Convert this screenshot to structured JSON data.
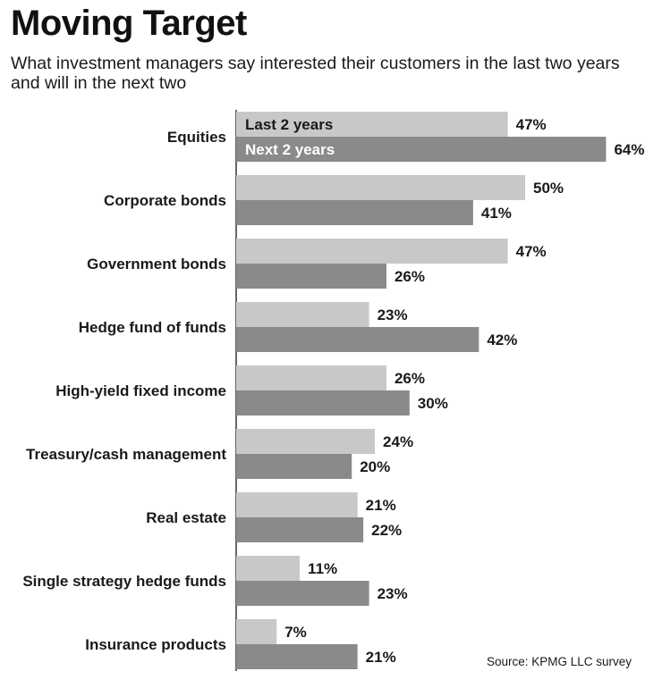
{
  "title": "Moving Target",
  "subtitle": "What investment managers say interested their customers in the last two years and will in the next two",
  "source": "Source: KPMG LLC survey",
  "colors": {
    "last": "#c8c8c8",
    "next": "#8a8a8a",
    "legend_last_text": "#1a1a1a",
    "legend_next_text": "#ffffff"
  },
  "chart_data": {
    "type": "bar",
    "orientation": "horizontal",
    "unit": "%",
    "categories": [
      "Equities",
      "Corporate bonds",
      "Government bonds",
      "Hedge fund of funds",
      "High-yield fixed income",
      "Treasury/cash management",
      "Real estate",
      "Single strategy hedge funds",
      "Insurance products"
    ],
    "series": [
      {
        "name": "Last 2 years",
        "values": [
          47,
          50,
          47,
          23,
          26,
          24,
          21,
          11,
          7
        ]
      },
      {
        "name": "Next 2 years",
        "values": [
          64,
          41,
          26,
          42,
          30,
          20,
          22,
          23,
          21
        ]
      }
    ],
    "legend_placement": "inside-first-bars",
    "grid": false
  }
}
